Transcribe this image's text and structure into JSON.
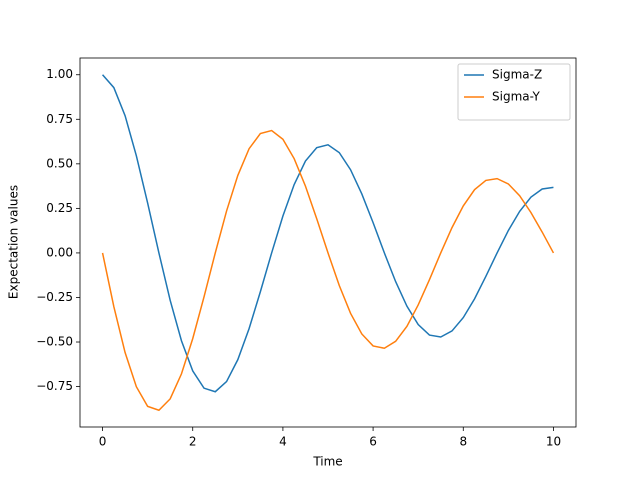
{
  "chart_data": {
    "type": "line",
    "xlabel": "Time",
    "ylabel": "Expectation values",
    "x": [
      0,
      0.25,
      0.5,
      0.75,
      1,
      1.25,
      1.5,
      1.75,
      2,
      2.25,
      2.5,
      2.75,
      3,
      3.25,
      3.5,
      3.75,
      4,
      4.25,
      4.5,
      4.75,
      5,
      5.25,
      5.5,
      5.75,
      6,
      6.25,
      6.5,
      6.75,
      7,
      7.25,
      7.5,
      7.75,
      8,
      8.25,
      8.5,
      8.75,
      9,
      9.25,
      9.5,
      9.75,
      10
    ],
    "series": [
      {
        "name": "Sigma-Z",
        "color": "#1f77b4",
        "values": [
          1.0,
          0.928,
          0.77,
          0.545,
          0.28,
          0,
          -0.266,
          -0.493,
          -0.662,
          -0.759,
          -0.779,
          -0.722,
          -0.599,
          -0.425,
          -0.218,
          0,
          0.207,
          0.384,
          0.516,
          0.591,
          0.607,
          0.563,
          0.467,
          0.331,
          0.17,
          0,
          -0.161,
          -0.299,
          -0.402,
          -0.461,
          -0.472,
          -0.438,
          -0.363,
          -0.258,
          -0.132,
          0,
          0.126,
          0.233,
          0.313,
          0.359,
          0.368
        ]
      },
      {
        "name": "Sigma-Y",
        "color": "#ff7f0e",
        "values": [
          0,
          -0.301,
          -0.559,
          -0.751,
          -0.861,
          -0.883,
          -0.819,
          -0.679,
          -0.481,
          -0.247,
          0,
          0.235,
          0.435,
          0.585,
          0.67,
          0.687,
          0.638,
          0.529,
          0.375,
          0.192,
          0,
          -0.183,
          -0.339,
          -0.455,
          -0.522,
          -0.535,
          -0.496,
          -0.412,
          -0.292,
          -0.15,
          0,
          0.142,
          0.264,
          0.355,
          0.407,
          0.417,
          0.387,
          0.321,
          0.227,
          0.117,
          0
        ]
      }
    ],
    "xlim": [
      -0.5,
      10.5
    ],
    "xticks": [
      0,
      2,
      4,
      6,
      8,
      10
    ],
    "ylim": [
      -0.977,
      1.094
    ],
    "yticks": [
      {
        "value": -0.75,
        "label": "−0.75"
      },
      {
        "value": -0.5,
        "label": "−0.50"
      },
      {
        "value": -0.25,
        "label": "−0.25"
      },
      {
        "value": 0,
        "label": "0.00"
      },
      {
        "value": 0.25,
        "label": "0.25"
      },
      {
        "value": 0.5,
        "label": "0.50"
      },
      {
        "value": 0.75,
        "label": "0.75"
      },
      {
        "value": 1,
        "label": "1.00"
      }
    ],
    "legend": "upper right",
    "grid": false
  }
}
